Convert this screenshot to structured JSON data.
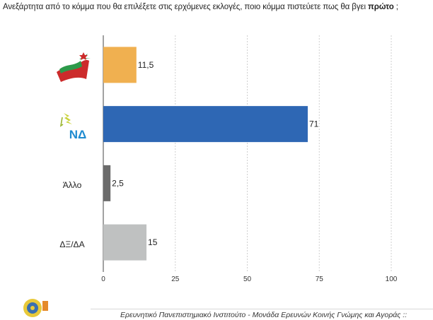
{
  "title": {
    "prefix": "Ανεξάρτητα από το κόμμα που θα επιλέξετε στις ερχόμενες εκλογές, ποιο κόμμα πιστεύετε πως θα βγει ",
    "emphasis": "πρώτο",
    "suffix": " ;"
  },
  "footer": {
    "text": "Ερευνητικό Πανεπιστημιακό Ινστιτούτο - Μονάδα Ερευνών Κοινής Γνώμης και Αγοράς ::"
  },
  "chart_data": {
    "type": "bar",
    "orientation": "horizontal",
    "categories": [
      "SYRIZA-logo",
      "ND-logo",
      "Άλλο",
      "ΔΞ/ΔΑ"
    ],
    "category_labels": [
      "",
      "ΝΔ",
      "Άλλο",
      "ΔΞ/ΔΑ"
    ],
    "values": [
      11.5,
      71,
      2.5,
      15
    ],
    "value_labels": [
      "11,5",
      "71",
      "2,5",
      "15"
    ],
    "colors": [
      "#f0b050",
      "#2e67b4",
      "#6b6b6b",
      "#bfc1c1"
    ],
    "xlim": [
      0,
      100
    ],
    "xticks": [
      0,
      25,
      50,
      75,
      100
    ],
    "grid": true,
    "legend": "none"
  }
}
